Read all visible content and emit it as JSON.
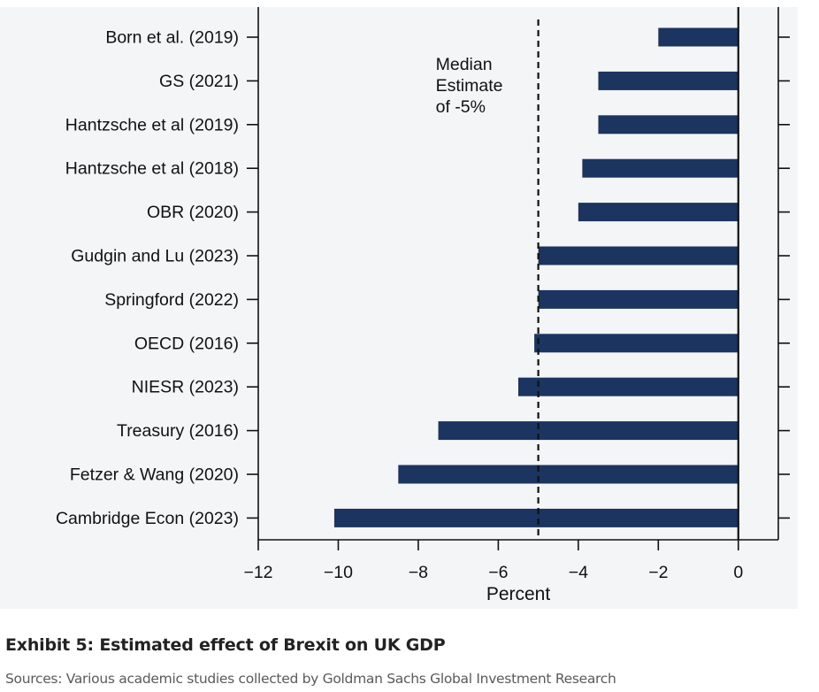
{
  "exhibit": {
    "title": "Exhibit 5: Estimated effect of Brexit on UK GDP",
    "source": "Sources: Various academic studies collected by Goldman Sachs Global Investment Research"
  },
  "colors": {
    "bar": "#1b3560",
    "panel_background": "#f4f5f7",
    "axis": "#111111"
  },
  "chart_data": {
    "type": "bar",
    "orientation": "horizontal",
    "categories": [
      "Born et al. (2019)",
      "GS (2021)",
      "Hantzsche et al (2019)",
      "Hantzsche et al (2018)",
      "OBR (2020)",
      "Gudgin and Lu (2023)",
      "Springford (2022)",
      "OECD (2016)",
      "NIESR (2023)",
      "Treasury (2016)",
      "Fetzer & Wang (2020)",
      "Cambridge Econ (2023)"
    ],
    "values": [
      -2.0,
      -3.5,
      -3.5,
      -3.9,
      -4.0,
      -5.0,
      -5.0,
      -5.1,
      -5.5,
      -7.5,
      -8.5,
      -10.1
    ],
    "xlabel": "Percent",
    "ylabel": "",
    "xlim": [
      -12,
      1
    ],
    "xticks": [
      -12,
      -10,
      -8,
      -6,
      -4,
      -2,
      0
    ],
    "xtick_labels": [
      "−12",
      "−10",
      "−8",
      "−6",
      "−4",
      "−2",
      "0"
    ],
    "reference_lines": [
      {
        "x": -5,
        "style": "dashed",
        "label_lines": [
          "Median",
          "Estimate",
          "of -5%"
        ]
      },
      {
        "x": 0,
        "style": "solid"
      }
    ],
    "grid": false,
    "legend": "none"
  }
}
